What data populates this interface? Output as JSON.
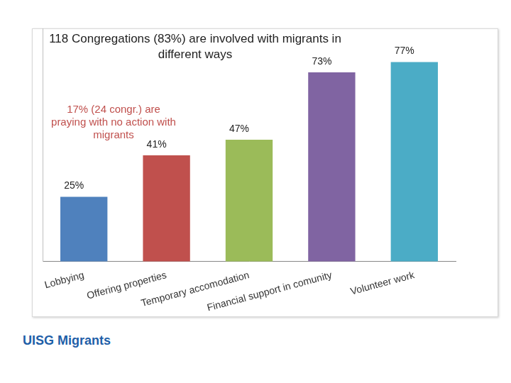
{
  "chart_data": {
    "type": "bar",
    "title": "118 Congregations (83%) are involved with migrants in different ways",
    "annotations": [
      "17% (24 congr.) are praying with no action with migrants",
      "UISG Migrants"
    ],
    "categories": [
      "Lobbying",
      "Offering properties",
      "Temporary accomodation",
      "Financial support in comunity",
      "Volunteer work"
    ],
    "values": [
      25,
      41,
      47,
      73,
      77
    ],
    "value_labels": [
      "25%",
      "41%",
      "47%",
      "73%",
      "77%"
    ],
    "colors": [
      "#4f81bd",
      "#c0504d",
      "#9bbb59",
      "#8064a2",
      "#4bacc6"
    ],
    "ylim": [
      0,
      90
    ],
    "grid": false,
    "data_labels": true,
    "tick_labels": "x"
  }
}
